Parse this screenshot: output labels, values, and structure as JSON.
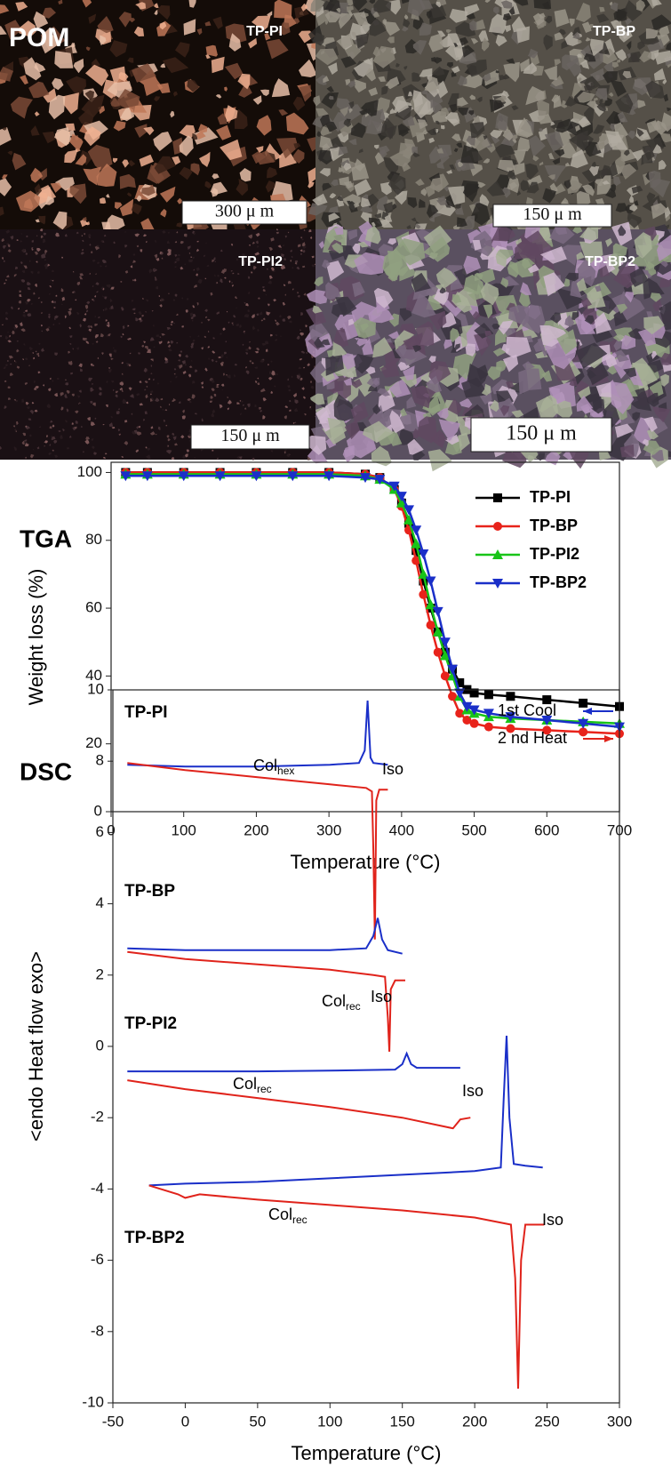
{
  "pom_panel": {
    "label": "POM",
    "panels": [
      {
        "name": "TP-PI",
        "scale": "300 μ m"
      },
      {
        "name": "TP-BP",
        "scale": "150 μ m"
      },
      {
        "name": "TP-PI2",
        "scale": "150 μ m"
      },
      {
        "name": "TP-BP2",
        "scale": "150 μ m"
      }
    ]
  },
  "chart_data": [
    {
      "type": "line",
      "annotation": "TGA",
      "x_label": "Temperature (°C)",
      "y_label": "Weight loss (%)",
      "x": [
        20,
        50,
        100,
        150,
        200,
        250,
        300,
        350,
        370,
        390,
        400,
        410,
        420,
        430,
        440,
        450,
        460,
        470,
        480,
        490,
        500,
        520,
        550,
        600,
        650,
        700
      ],
      "series": [
        {
          "name": "TP-PI",
          "color": "#000000",
          "marker": "square",
          "values": [
            100,
            100,
            100,
            100,
            100,
            100,
            100,
            99.5,
            98.5,
            95,
            91,
            85,
            77,
            68,
            60,
            53,
            47,
            42,
            38,
            36,
            35,
            34.5,
            34,
            33,
            32,
            31
          ]
        },
        {
          "name": "TP-BP",
          "color": "#e8231b",
          "marker": "circle",
          "values": [
            100,
            100,
            100,
            100,
            100,
            100,
            100,
            99.5,
            98.5,
            95,
            90,
            83,
            74,
            64,
            55,
            47,
            40,
            34,
            29,
            27,
            26,
            25,
            24.5,
            24,
            23.5,
            23
          ]
        },
        {
          "name": "TP-PI2",
          "color": "#18c418",
          "marker": "triangle-up",
          "values": [
            99.5,
            99.5,
            99.5,
            99.5,
            99.5,
            99.5,
            99.5,
            99,
            98,
            95,
            91,
            86,
            79,
            70,
            61,
            53,
            46,
            40,
            34,
            30,
            29,
            28,
            27.5,
            27,
            26.5,
            26
          ]
        },
        {
          "name": "TP-BP2",
          "color": "#1a2fc8",
          "marker": "triangle-down",
          "values": [
            99,
            99,
            99,
            99,
            99,
            99,
            99,
            98.5,
            98,
            96,
            93,
            89,
            83,
            76,
            68,
            59,
            50,
            42,
            35,
            31,
            30,
            29,
            28,
            27,
            26,
            25
          ]
        }
      ],
      "xlim": [
        0,
        700
      ],
      "ylim": [
        0,
        103
      ],
      "xticks": [
        0,
        100,
        200,
        300,
        400,
        500,
        600,
        700
      ],
      "yticks": [
        0,
        20,
        40,
        60,
        80,
        100
      ]
    },
    {
      "type": "dsc",
      "annotation": "DSC",
      "x_label": "Temperature (°C)",
      "y_label": "<endo Heat flow exo>",
      "legend": [
        {
          "name": "1st Cool",
          "color": "#1a2fc8"
        },
        {
          "name": "2 nd Heat",
          "color": "#e0231b"
        }
      ],
      "samples": [
        {
          "name": "TP-PI",
          "cool": {
            "x": [
              -40,
              0,
              50,
              100,
              120,
              124,
              126,
              128,
              130,
              140
            ],
            "values": [
              7.9,
              7.85,
              7.85,
              7.9,
              7.95,
              8.3,
              9.7,
              8.1,
              7.95,
              7.9
            ]
          },
          "heat": {
            "x": [
              -40,
              0,
              50,
              100,
              125,
              129,
              130,
              131,
              132,
              134,
              140
            ],
            "values": [
              7.95,
              7.75,
              7.55,
              7.35,
              7.25,
              7.15,
              5.5,
              3.0,
              6.9,
              7.2,
              7.2
            ]
          }
        },
        {
          "name": "TP-BP",
          "cool": {
            "x": [
              -40,
              0,
              50,
              100,
              125,
              130,
              133,
              136,
              140,
              150
            ],
            "values": [
              2.75,
              2.7,
              2.7,
              2.7,
              2.75,
              3.1,
              3.6,
              3.0,
              2.7,
              2.6
            ]
          },
          "heat": {
            "x": [
              -40,
              0,
              50,
              100,
              130,
              138,
              140,
              141,
              142,
              145,
              152
            ],
            "values": [
              2.65,
              2.45,
              2.3,
              2.15,
              2.0,
              1.95,
              0.8,
              -0.15,
              1.6,
              1.85,
              1.85
            ]
          }
        },
        {
          "name": "TP-PI2",
          "cool": {
            "x": [
              -40,
              0,
              50,
              100,
              145,
              150,
              153,
              156,
              160,
              190
            ],
            "values": [
              -0.7,
              -0.7,
              -0.7,
              -0.68,
              -0.65,
              -0.5,
              -0.2,
              -0.5,
              -0.6,
              -0.6
            ]
          },
          "heat": {
            "x": [
              -40,
              0,
              50,
              100,
              150,
              185,
              190,
              197
            ],
            "values": [
              -0.95,
              -1.2,
              -1.45,
              -1.7,
              -2.0,
              -2.3,
              -2.05,
              -2.0
            ]
          }
        },
        {
          "name": "TP-BP2",
          "cool": {
            "x": [
              -25,
              0,
              50,
              100,
              150,
              200,
              218,
              220,
              222,
              224,
              227,
              235,
              247
            ],
            "values": [
              -3.9,
              -3.85,
              -3.8,
              -3.7,
              -3.6,
              -3.5,
              -3.4,
              -1.5,
              0.3,
              -2.0,
              -3.3,
              -3.35,
              -3.4
            ]
          },
          "heat": {
            "x": [
              -25,
              -5,
              0,
              5,
              10,
              50,
              100,
              150,
              200,
              225,
              228,
              230,
              232,
              235,
              248
            ],
            "values": [
              -3.9,
              -4.15,
              -4.25,
              -4.2,
              -4.15,
              -4.3,
              -4.45,
              -4.6,
              -4.8,
              -5.0,
              -6.5,
              -9.6,
              -6.0,
              -5.0,
              -5.0
            ]
          }
        }
      ],
      "phase_labels": [
        {
          "text": "Col",
          "sub": "hex"
        },
        {
          "text": "Iso"
        },
        {
          "text": "Col",
          "sub": "rec"
        },
        {
          "text": "Iso"
        },
        {
          "text": "Col",
          "sub": "rec"
        },
        {
          "text": "Iso"
        },
        {
          "text": "Col",
          "sub": "rec"
        },
        {
          "text": "Iso"
        }
      ],
      "xlim": [
        -50,
        300
      ],
      "ylim": [
        -10,
        10
      ],
      "xticks": [
        -50,
        0,
        50,
        100,
        150,
        200,
        250,
        300
      ],
      "yticks": [
        -10,
        -8,
        -6,
        -4,
        -2,
        0,
        2,
        4,
        6,
        8,
        10
      ]
    }
  ]
}
